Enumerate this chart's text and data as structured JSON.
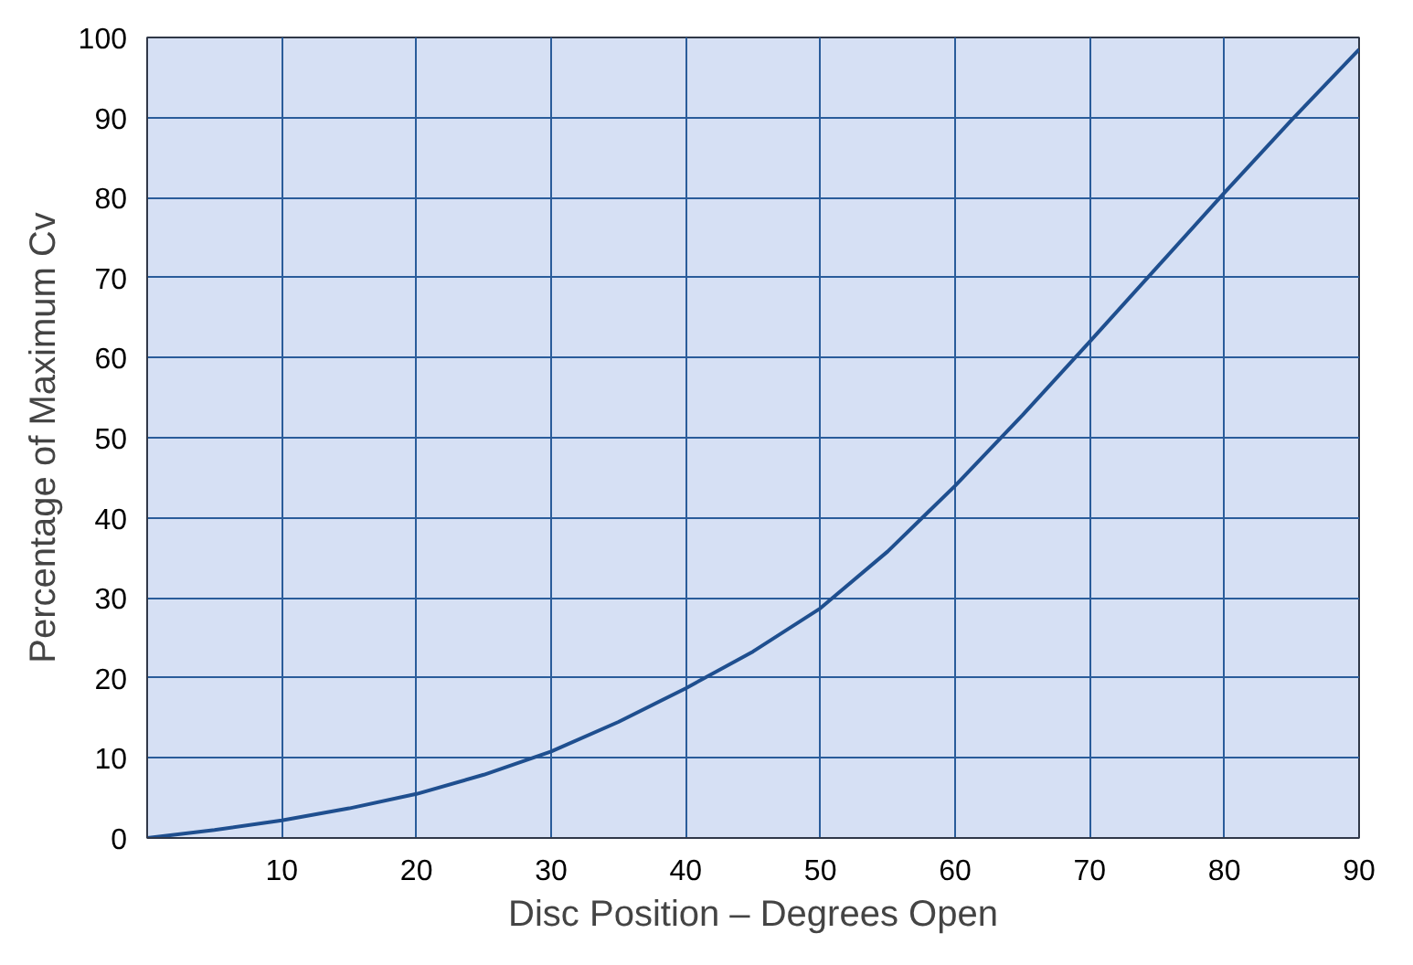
{
  "chart_data": {
    "type": "line",
    "xlabel": "Disc Position – Degrees Open",
    "ylabel": "Percentage of Maximum Cv",
    "x": [
      0,
      5,
      10,
      15,
      20,
      25,
      30,
      35,
      40,
      45,
      50,
      55,
      60,
      65,
      70,
      75,
      80,
      85,
      90
    ],
    "series": [
      {
        "color": "#1f4f8f",
        "values": [
          0,
          1.0,
          2.2,
          3.7,
          5.5,
          7.9,
          10.8,
          14.5,
          18.7,
          23.3,
          28.7,
          35.8,
          44.0,
          52.8,
          62.0,
          71.3,
          80.6,
          89.7,
          98.5
        ]
      }
    ],
    "xlim": [
      0,
      90
    ],
    "ylim": [
      0,
      100
    ],
    "xticks": [
      10,
      20,
      30,
      40,
      50,
      60,
      70,
      80,
      90
    ],
    "yticks": [
      0,
      10,
      20,
      30,
      40,
      50,
      60,
      70,
      80,
      90,
      100
    ],
    "grid": true,
    "marker": "none",
    "line_style": "solid"
  }
}
